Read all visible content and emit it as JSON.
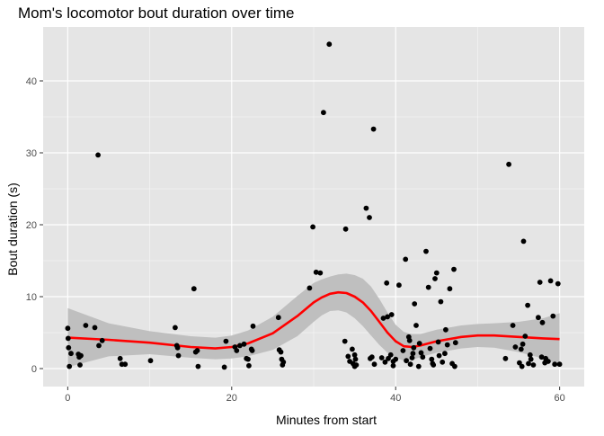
{
  "chart_data": {
    "type": "scatter",
    "title": "Mom's locomotor bout duration over time",
    "xlabel": "Minutes from start",
    "ylabel": "Bout duration (s)",
    "xlim": [
      -3,
      63
    ],
    "ylim": [
      -2.5,
      47.5
    ],
    "x_ticks": [
      0,
      20,
      40,
      60
    ],
    "y_ticks": [
      0,
      10,
      20,
      30,
      40
    ],
    "x_tick_labels": [
      "0",
      "20",
      "40",
      "60"
    ],
    "y_tick_labels": [
      "0",
      "10",
      "20",
      "30",
      "40"
    ],
    "grid": true,
    "colors": {
      "panel": "#e5e5e5",
      "grid_major": "#ffffff",
      "points": "#000000",
      "smooth_line": "#ff0000",
      "ribbon": "#bfbfbf"
    },
    "points": [
      [
        0.0,
        5.6
      ],
      [
        0.05,
        4.2
      ],
      [
        0.1,
        2.9
      ],
      [
        0.2,
        0.3
      ],
      [
        0.4,
        2.1
      ],
      [
        1.3,
        2.0
      ],
      [
        1.4,
        1.6
      ],
      [
        1.5,
        0.5
      ],
      [
        1.6,
        1.8
      ],
      [
        2.2,
        6.0
      ],
      [
        3.3,
        5.7
      ],
      [
        3.7,
        29.7
      ],
      [
        3.8,
        3.2
      ],
      [
        4.2,
        3.9
      ],
      [
        6.4,
        1.4
      ],
      [
        6.6,
        0.6
      ],
      [
        7.0,
        0.6
      ],
      [
        10.1,
        1.1
      ],
      [
        13.1,
        5.7
      ],
      [
        13.3,
        3.2
      ],
      [
        13.4,
        2.9
      ],
      [
        13.5,
        1.8
      ],
      [
        15.4,
        11.1
      ],
      [
        15.6,
        2.3
      ],
      [
        15.8,
        2.5
      ],
      [
        15.9,
        0.3
      ],
      [
        19.1,
        0.2
      ],
      [
        19.3,
        3.8
      ],
      [
        20.4,
        3.0
      ],
      [
        20.6,
        2.5
      ],
      [
        21.0,
        3.2
      ],
      [
        21.5,
        3.4
      ],
      [
        21.8,
        1.4
      ],
      [
        22.0,
        1.3
      ],
      [
        22.1,
        0.4
      ],
      [
        22.4,
        2.7
      ],
      [
        22.6,
        5.9
      ],
      [
        22.5,
        2.5
      ],
      [
        25.7,
        7.1
      ],
      [
        25.8,
        2.6
      ],
      [
        26.0,
        2.3
      ],
      [
        26.1,
        1.3
      ],
      [
        26.2,
        0.5
      ],
      [
        26.3,
        0.9
      ],
      [
        29.5,
        11.2
      ],
      [
        29.9,
        19.7
      ],
      [
        30.3,
        13.4
      ],
      [
        30.8,
        13.3
      ],
      [
        31.2,
        35.6
      ],
      [
        31.9,
        45.1
      ],
      [
        33.8,
        3.8
      ],
      [
        33.9,
        19.4
      ],
      [
        34.2,
        1.7
      ],
      [
        34.4,
        1.0
      ],
      [
        34.7,
        2.7
      ],
      [
        34.8,
        0.7
      ],
      [
        35.0,
        0.3
      ],
      [
        35.0,
        1.9
      ],
      [
        35.1,
        1.3
      ],
      [
        35.2,
        0.5
      ],
      [
        36.4,
        22.3
      ],
      [
        36.8,
        21.0
      ],
      [
        36.9,
        1.4
      ],
      [
        37.1,
        1.6
      ],
      [
        37.3,
        33.3
      ],
      [
        37.4,
        0.6
      ],
      [
        38.3,
        1.5
      ],
      [
        38.5,
        7.0
      ],
      [
        38.7,
        0.9
      ],
      [
        38.9,
        11.9
      ],
      [
        39.0,
        7.2
      ],
      [
        39.1,
        1.4
      ],
      [
        39.4,
        1.9
      ],
      [
        39.5,
        7.5
      ],
      [
        39.7,
        1.0
      ],
      [
        39.7,
        0.4
      ],
      [
        40.0,
        1.3
      ],
      [
        40.4,
        11.6
      ],
      [
        40.9,
        2.5
      ],
      [
        41.2,
        15.2
      ],
      [
        41.3,
        1.1
      ],
      [
        41.6,
        4.4
      ],
      [
        41.7,
        3.9
      ],
      [
        41.8,
        0.6
      ],
      [
        42.0,
        1.5
      ],
      [
        42.1,
        2.1
      ],
      [
        42.2,
        2.9
      ],
      [
        42.3,
        9.0
      ],
      [
        42.5,
        6.0
      ],
      [
        42.8,
        0.3
      ],
      [
        42.9,
        3.5
      ],
      [
        43.1,
        2.2
      ],
      [
        43.3,
        1.6
      ],
      [
        43.7,
        16.3
      ],
      [
        44.0,
        11.3
      ],
      [
        44.2,
        2.8
      ],
      [
        44.4,
        1.3
      ],
      [
        44.5,
        0.7
      ],
      [
        44.6,
        0.5
      ],
      [
        44.8,
        12.5
      ],
      [
        45.0,
        13.3
      ],
      [
        45.2,
        3.7
      ],
      [
        45.3,
        1.8
      ],
      [
        45.5,
        9.3
      ],
      [
        45.7,
        0.9
      ],
      [
        46.0,
        2.1
      ],
      [
        46.1,
        5.4
      ],
      [
        46.3,
        3.3
      ],
      [
        46.6,
        11.1
      ],
      [
        46.9,
        0.7
      ],
      [
        47.1,
        13.8
      ],
      [
        47.2,
        0.3
      ],
      [
        47.3,
        3.6
      ],
      [
        53.4,
        1.4
      ],
      [
        53.8,
        28.4
      ],
      [
        54.3,
        6.0
      ],
      [
        54.6,
        3.0
      ],
      [
        55.1,
        0.8
      ],
      [
        55.3,
        2.7
      ],
      [
        55.4,
        0.3
      ],
      [
        55.5,
        3.4
      ],
      [
        55.6,
        17.7
      ],
      [
        55.8,
        4.5
      ],
      [
        56.1,
        8.8
      ],
      [
        56.2,
        0.7
      ],
      [
        56.4,
        1.9
      ],
      [
        56.5,
        1.3
      ],
      [
        56.8,
        0.5
      ],
      [
        57.4,
        7.1
      ],
      [
        57.6,
        12.0
      ],
      [
        57.8,
        1.6
      ],
      [
        57.9,
        6.4
      ],
      [
        58.2,
        0.8
      ],
      [
        58.3,
        1.4
      ],
      [
        58.6,
        1.0
      ],
      [
        58.9,
        12.2
      ],
      [
        59.2,
        7.3
      ],
      [
        59.4,
        0.6
      ],
      [
        59.8,
        11.8
      ],
      [
        60.0,
        0.6
      ]
    ],
    "smooth": {
      "x": [
        0,
        5,
        10,
        15,
        18,
        20,
        22,
        25,
        28,
        30,
        31,
        32,
        33,
        34,
        35,
        36,
        37,
        38,
        39,
        40,
        41,
        42,
        43,
        45,
        48,
        50,
        52,
        55,
        58,
        60
      ],
      "y": [
        4.3,
        4.0,
        3.6,
        3.0,
        2.8,
        3.0,
        3.5,
        4.9,
        7.3,
        9.2,
        9.9,
        10.4,
        10.6,
        10.5,
        10.0,
        9.2,
        8.0,
        6.5,
        5.0,
        3.8,
        3.1,
        3.0,
        3.2,
        3.8,
        4.4,
        4.6,
        4.6,
        4.4,
        4.2,
        4.1
      ],
      "lower": [
        0.2,
        1.7,
        2.0,
        1.5,
        1.3,
        1.4,
        1.7,
        2.6,
        4.5,
        6.5,
        7.4,
        8.0,
        8.1,
        7.8,
        7.0,
        5.9,
        4.6,
        3.3,
        2.2,
        1.5,
        1.1,
        1.2,
        1.6,
        2.2,
        2.8,
        3.0,
        2.9,
        2.3,
        1.4,
        0.5
      ],
      "upper": [
        8.4,
        6.3,
        5.2,
        4.5,
        4.3,
        4.6,
        5.3,
        7.2,
        10.1,
        11.9,
        12.4,
        12.8,
        13.1,
        13.2,
        13.0,
        12.5,
        11.4,
        9.7,
        7.8,
        6.1,
        5.1,
        4.8,
        4.8,
        5.4,
        6.0,
        6.2,
        6.3,
        6.5,
        7.0,
        7.7
      ]
    }
  }
}
